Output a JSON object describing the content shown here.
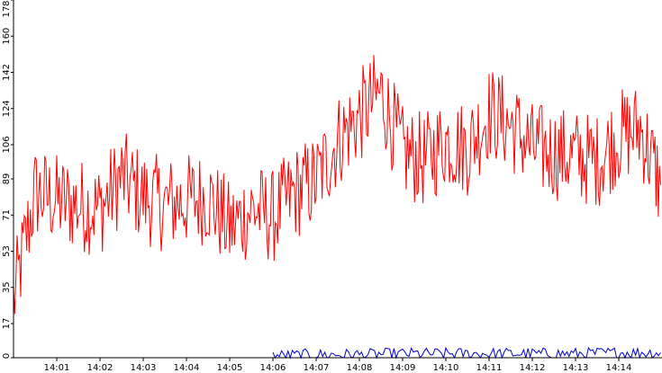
{
  "chart_data": {
    "type": "line",
    "title": "",
    "xlabel": "",
    "ylabel": "",
    "ylim": [
      0,
      178
    ],
    "xlim": [
      "14:00:00",
      "14:15:00"
    ],
    "grid": false,
    "y_ticks": [
      "0",
      "17",
      "35",
      "53",
      "71",
      "89",
      "106",
      "124",
      "142",
      "160",
      "178"
    ],
    "x_ticks": [
      "14:01",
      "14:02",
      "14:03",
      "14:04",
      "14:05",
      "14:06",
      "14:07",
      "14:08",
      "14:09",
      "14:10",
      "14:11",
      "14:12",
      "14:13",
      "14:14"
    ],
    "series": [
      {
        "color": "#ff0000",
        "x": [
          "14:00:00",
          "14:00:30",
          "14:01:00",
          "14:01:30",
          "14:02:00",
          "14:02:30",
          "14:03:00",
          "14:03:30",
          "14:04:00",
          "14:04:30",
          "14:05:00",
          "14:05:30",
          "14:06:00",
          "14:06:30",
          "14:07:00",
          "14:07:30",
          "14:08:00",
          "14:08:30",
          "14:09:00",
          "14:09:30",
          "14:10:00",
          "14:10:30",
          "14:11:00",
          "14:11:30",
          "14:12:00",
          "14:12:30",
          "14:13:00",
          "14:13:30",
          "14:14:00",
          "14:14:30",
          "14:14:58"
        ],
        "values": [
          28,
          82,
          78,
          76,
          74,
          90,
          80,
          76,
          78,
          80,
          64,
          74,
          70,
          82,
          88,
          108,
          120,
          132,
          102,
          98,
          108,
          104,
          122,
          116,
          104,
          102,
          100,
          98,
          110,
          114,
          86
        ],
        "jitter": 24,
        "samples_per_segment": 18
      },
      {
        "color": "#0000cc",
        "x": [
          "14:06:00",
          "14:07:00",
          "14:08:00",
          "14:09:00",
          "14:10:00",
          "14:11:00",
          "14:12:00",
          "14:13:00",
          "14:14:00",
          "14:14:58"
        ],
        "values": [
          1,
          1.5,
          1.5,
          2,
          2,
          2,
          2,
          2,
          2.5,
          2.5
        ],
        "jitter": 3,
        "samples_per_segment": 20
      }
    ]
  },
  "colors": {
    "background": "#ffffff",
    "axis": "#000000",
    "primary_series": "#ff0000",
    "secondary_series": "#0000cc"
  }
}
